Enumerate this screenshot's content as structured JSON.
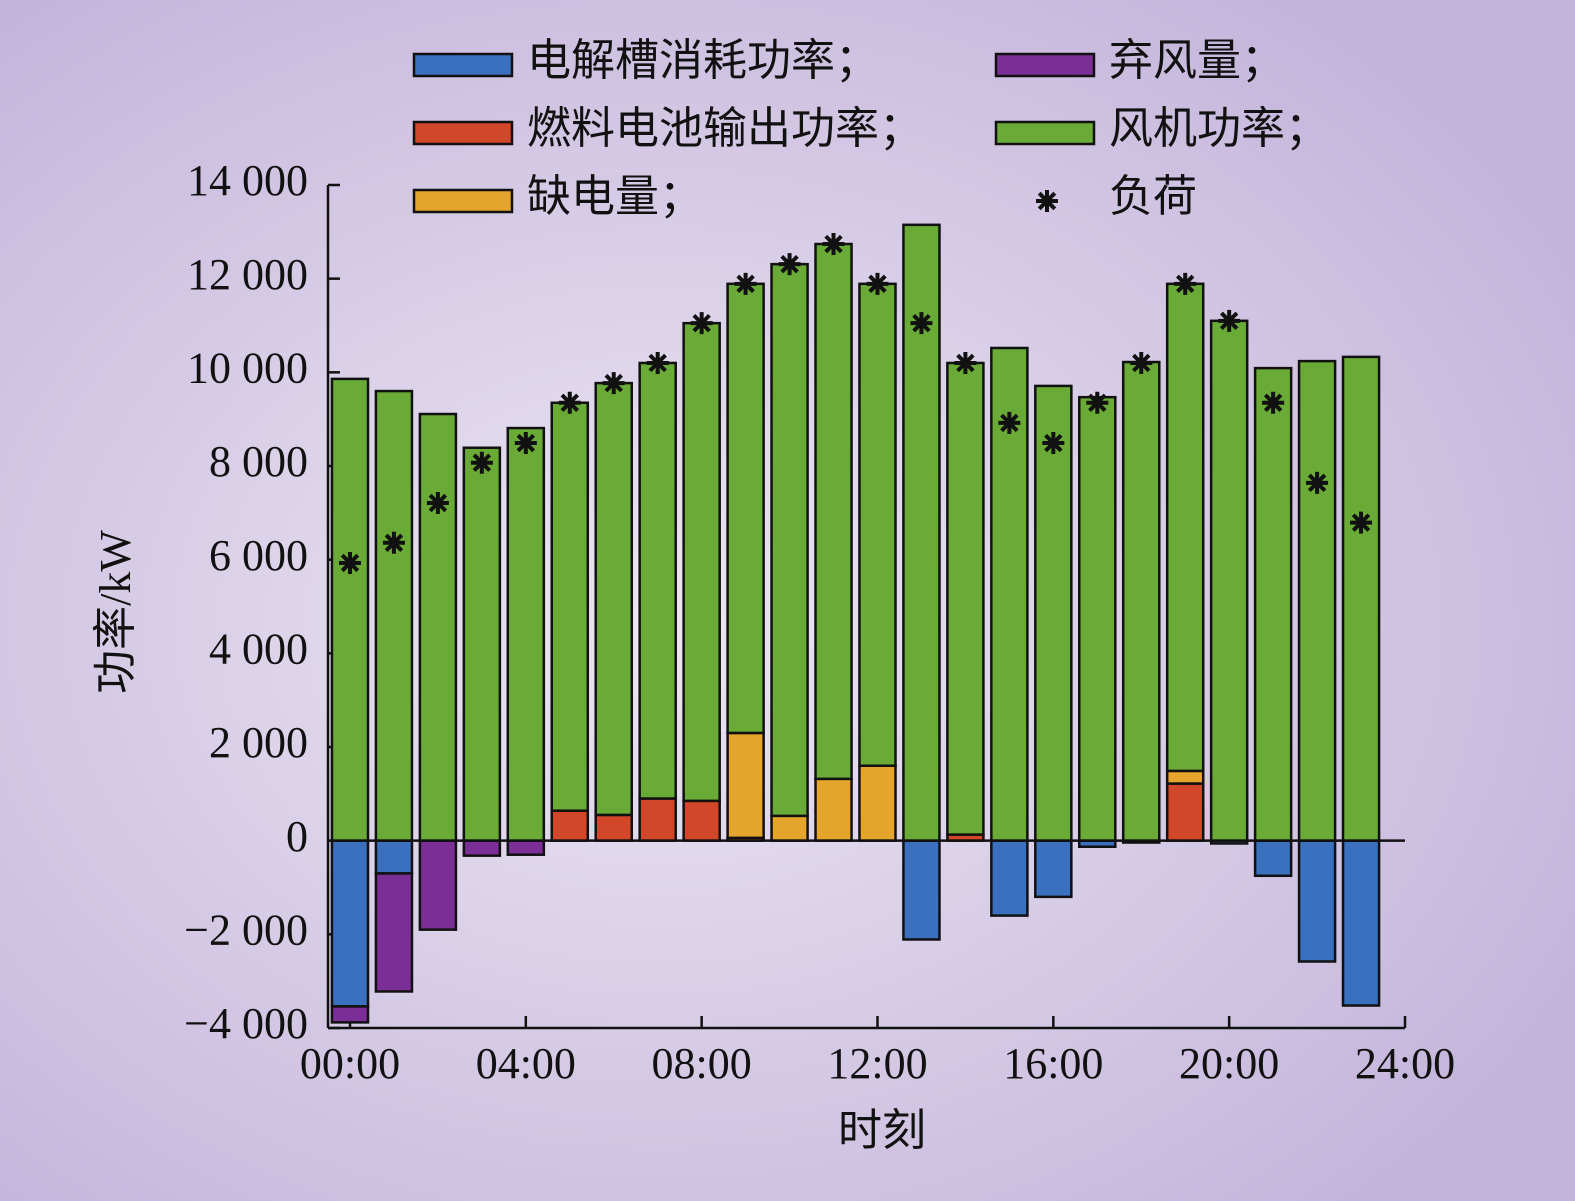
{
  "chart_data": {
    "type": "bar",
    "stacked": true,
    "xlabel": "时刻",
    "ylabel": "功率/kW",
    "x": [
      0,
      1,
      2,
      3,
      4,
      5,
      6,
      7,
      8,
      9,
      10,
      11,
      12,
      13,
      14,
      15,
      16,
      17,
      18,
      19,
      20,
      21,
      22,
      23
    ],
    "xlim": [
      -0.5,
      24
    ],
    "xticks": [
      {
        "value": 0,
        "label": "00:00"
      },
      {
        "value": 4,
        "label": "04:00"
      },
      {
        "value": 8,
        "label": "08:00"
      },
      {
        "value": 12,
        "label": "12:00"
      },
      {
        "value": 16,
        "label": "16:00"
      },
      {
        "value": 20,
        "label": "20:00"
      },
      {
        "value": 24,
        "label": "24:00"
      }
    ],
    "ylim": [
      -4000,
      14000
    ],
    "yticks": [
      {
        "value": -4000,
        "label": "−4 000"
      },
      {
        "value": -2000,
        "label": "−2 000"
      },
      0,
      {
        "value": 2000,
        "label": "2 000"
      },
      {
        "value": 4000,
        "label": "4 000"
      },
      {
        "value": 6000,
        "label": "6 000"
      },
      {
        "value": 8000,
        "label": "8 000"
      },
      {
        "value": 10000,
        "label": "10 000"
      },
      {
        "value": 12000,
        "label": "12 000"
      },
      {
        "value": 14000,
        "label": "14 000"
      }
    ],
    "series": [
      {
        "name": "电解槽消耗功率；",
        "color": "#3a70bd",
        "values": [
          -3540,
          -700,
          0,
          0,
          0,
          0,
          0,
          0,
          0,
          0,
          0,
          0,
          0,
          -2110,
          0,
          -1600,
          -1200,
          -130,
          -40,
          0,
          -60,
          -750,
          -2580,
          -3520
        ]
      },
      {
        "name": "燃料电池输出功率；",
        "color": "#d2462a",
        "values": [
          0,
          0,
          0,
          0,
          0,
          640,
          550,
          900,
          850,
          60,
          0,
          0,
          0,
          0,
          130,
          0,
          0,
          0,
          0,
          1220,
          0,
          0,
          0,
          0
        ]
      },
      {
        "name": "缺电量；",
        "color": "#e5a42b",
        "values": [
          0,
          0,
          0,
          0,
          0,
          0,
          0,
          0,
          0,
          2240,
          530,
          1320,
          1600,
          0,
          0,
          0,
          0,
          0,
          0,
          270,
          0,
          0,
          0,
          0
        ]
      },
      {
        "name": "弃风量；",
        "color": "#7a2e96",
        "values": [
          -340,
          -2520,
          -1900,
          -320,
          -300,
          0,
          0,
          0,
          0,
          0,
          0,
          0,
          0,
          0,
          0,
          0,
          0,
          0,
          0,
          0,
          0,
          0,
          0,
          0
        ]
      },
      {
        "name": "风机功率；",
        "color": "#6aaa36",
        "values": [
          9860,
          9600,
          9110,
          8390,
          8810,
          8710,
          9220,
          9300,
          10200,
          9590,
          11780,
          11420,
          10290,
          13150,
          10070,
          10520,
          9710,
          9470,
          10220,
          10400,
          11100,
          10090,
          10240,
          10330
        ]
      },
      {
        "name": "负荷",
        "type": "scatter",
        "marker": "asterisk",
        "color": "#111111",
        "values": [
          5930,
          6360,
          7210,
          8070,
          8490,
          9350,
          9770,
          10200,
          11050,
          11890,
          12310,
          12740,
          11890,
          11050,
          10200,
          8920,
          8490,
          9350,
          10200,
          11890,
          11100,
          9350,
          7640,
          6790
        ]
      }
    ]
  }
}
